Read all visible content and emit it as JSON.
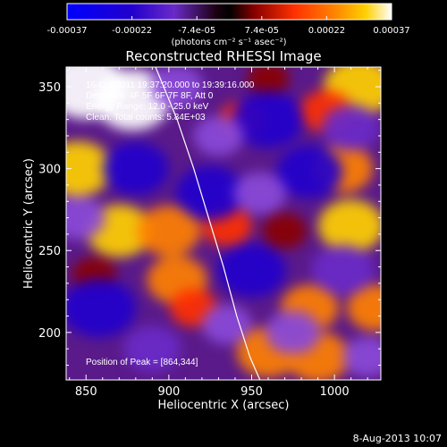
{
  "chart_data": {
    "type": "heatmap",
    "title": "Reconstructed RHESSI Image",
    "xlabel": "Heliocentric X (arcsec)",
    "ylabel": "Heliocentric Y (arcsec)",
    "xlim": [
      838,
      1028
    ],
    "ylim": [
      171,
      362
    ],
    "x_ticks": [
      850,
      900,
      950,
      1000
    ],
    "y_ticks": [
      200,
      250,
      300,
      350
    ],
    "colorbar": {
      "ticks": [
        "-0.00037",
        "-0.00022",
        "-7.4e-05",
        "7.4e-05",
        "0.00022",
        "0.00037"
      ],
      "label": "(photons cm⁻² s⁻¹ asec⁻²)",
      "range": [
        -0.00037,
        0.00037
      ],
      "colors": [
        "#0000ff",
        "#2200cc",
        "#6a2ac8",
        "#8a4ad8",
        "#1a0010",
        "#000000",
        "#8a0000",
        "#ff3000",
        "#ff8000",
        "#ffd000",
        "#ffffff"
      ]
    },
    "annotations": [
      "16-Oct-2011 19:37:20.000 to 19:39:16.000",
      "Detectors: 4F 5F 6F 7F 8F, Att 0",
      "Energy Range: 12.0 - 25.0 keV",
      "Clean. Total counts: 5.84E+03"
    ],
    "peak_label": "Position of Peak = [864,344]",
    "limb_curve": [
      [
        892,
        362
      ],
      [
        905,
        330
      ],
      [
        915,
        300
      ],
      [
        924,
        270
      ],
      [
        933,
        240
      ],
      [
        941,
        210
      ],
      [
        949,
        185
      ],
      [
        955,
        171
      ]
    ],
    "blobs": [
      {
        "x": 850,
        "y": 350,
        "v": 0.00037
      },
      {
        "x": 878,
        "y": 342,
        "v": 0.00034
      },
      {
        "x": 845,
        "y": 300,
        "v": 0.00028
      },
      {
        "x": 870,
        "y": 262,
        "v": 0.00026
      },
      {
        "x": 900,
        "y": 262,
        "v": 0.00024
      },
      {
        "x": 905,
        "y": 232,
        "v": 0.00022
      },
      {
        "x": 915,
        "y": 215,
        "v": 0.00012
      },
      {
        "x": 960,
        "y": 188,
        "v": 0.00024
      },
      {
        "x": 985,
        "y": 215,
        "v": 0.0002
      },
      {
        "x": 1010,
        "y": 265,
        "v": 0.00026
      },
      {
        "x": 1005,
        "y": 300,
        "v": 0.00022
      },
      {
        "x": 1015,
        "y": 350,
        "v": 0.0003
      },
      {
        "x": 990,
        "y": 185,
        "v": 0.00024
      },
      {
        "x": 945,
        "y": 330,
        "v": 0.00012
      },
      {
        "x": 970,
        "y": 262,
        "v": 0.0001
      },
      {
        "x": 935,
        "y": 265,
        "v": 0.00014
      },
      {
        "x": 855,
        "y": 235,
        "v": 0.0001
      },
      {
        "x": 995,
        "y": 335,
        "v": 0.00016
      },
      {
        "x": 960,
        "y": 355,
        "v": 8e-05
      },
      {
        "x": 1025,
        "y": 215,
        "v": 0.0002
      },
      {
        "x": 880,
        "y": 300,
        "v": -0.00026
      },
      {
        "x": 858,
        "y": 215,
        "v": -0.00032
      },
      {
        "x": 925,
        "y": 285,
        "v": -0.00028
      },
      {
        "x": 960,
        "y": 330,
        "v": -0.0003
      },
      {
        "x": 985,
        "y": 298,
        "v": -0.00026
      },
      {
        "x": 950,
        "y": 238,
        "v": -0.00028
      },
      {
        "x": 1005,
        "y": 238,
        "v": -0.00024
      },
      {
        "x": 890,
        "y": 190,
        "v": -0.0002
      },
      {
        "x": 975,
        "y": 200,
        "v": -0.00018
      },
      {
        "x": 1010,
        "y": 325,
        "v": -0.0002
      },
      {
        "x": 905,
        "y": 350,
        "v": -0.00016
      },
      {
        "x": 845,
        "y": 270,
        "v": -0.00018
      },
      {
        "x": 935,
        "y": 205,
        "v": -0.00014
      },
      {
        "x": 955,
        "y": 285,
        "v": -0.00016
      },
      {
        "x": 930,
        "y": 320,
        "v": -0.00014
      },
      {
        "x": 1020,
        "y": 185,
        "v": -0.00014
      }
    ]
  },
  "footer": {
    "date": "8-Aug-2013 10:07"
  }
}
